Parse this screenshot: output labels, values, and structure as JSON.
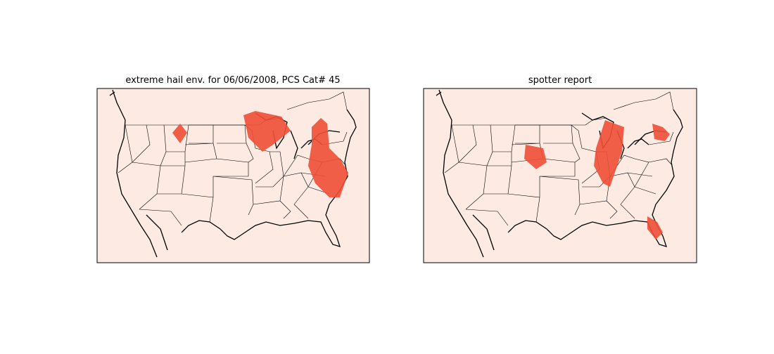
{
  "panels": [
    {
      "title": "extreme hail env. for 06/06/2008, PCS Cat# 45"
    },
    {
      "title": "spotter report"
    }
  ]
}
